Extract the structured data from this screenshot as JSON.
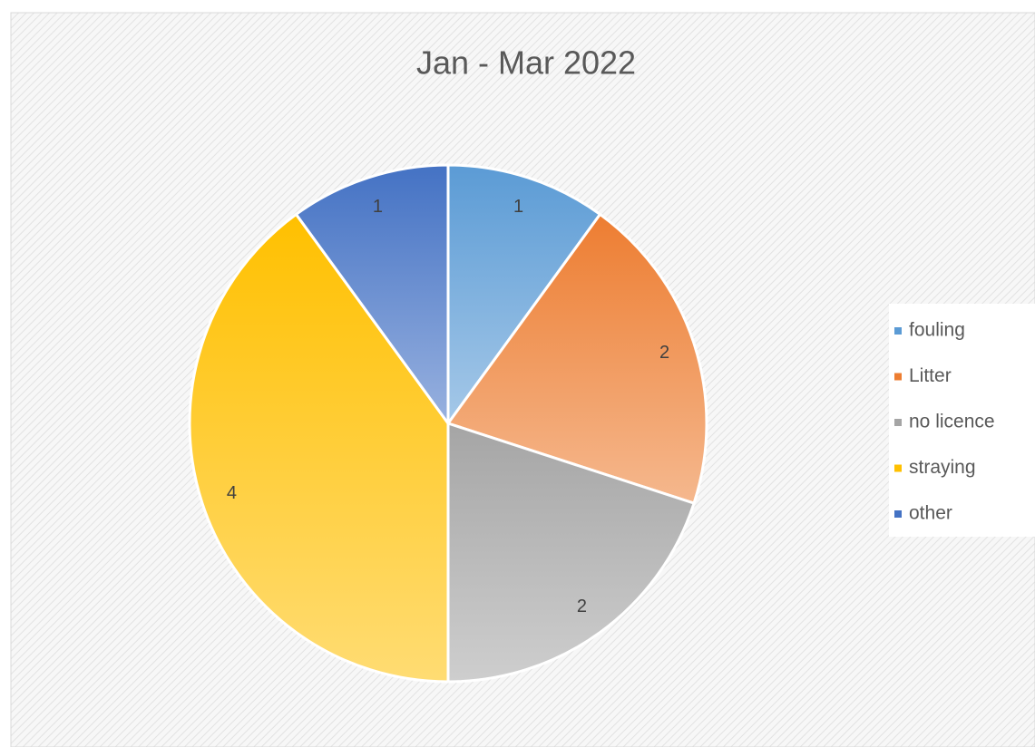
{
  "chart_data": {
    "type": "pie",
    "title": "Jan - Mar 2022",
    "categories": [
      "fouling",
      "Litter",
      "no licence",
      "straying",
      "other"
    ],
    "values": [
      1,
      2,
      2,
      4,
      1
    ],
    "colors": [
      "#5b9bd5",
      "#ed7d31",
      "#a5a5a5",
      "#ffc000",
      "#4472c4"
    ],
    "legend": "right"
  }
}
